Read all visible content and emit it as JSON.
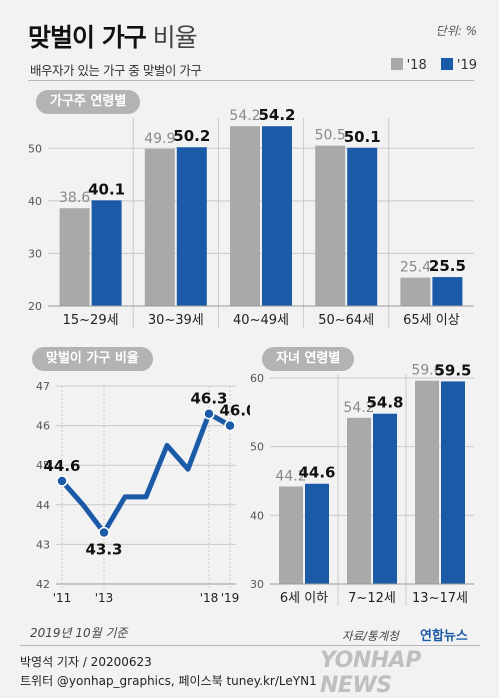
{
  "header": {
    "title_bold": "맞벌이 가구",
    "title_light": "비율",
    "subtitle": "배우자가 있는 가구 중 맞벌이 가구",
    "unit": "단위: %"
  },
  "legend": [
    {
      "label": "'18",
      "color": "#a9a9a9"
    },
    {
      "label": "'19",
      "color": "#1b5aa6"
    }
  ],
  "colors": {
    "y2018": "#a9a9a9",
    "y2019": "#1b5aa6",
    "badge": "#b3b3b3"
  },
  "chart_data": [
    {
      "type": "bar",
      "title": "가구주 연령별",
      "categories": [
        "15~29세",
        "30~39세",
        "40~49세",
        "50~64세",
        "65세 이상"
      ],
      "series": [
        {
          "name": "'18",
          "values": [
            38.6,
            49.9,
            54.2,
            50.5,
            25.4
          ]
        },
        {
          "name": "'19",
          "values": [
            40.1,
            50.2,
            54.2,
            50.1,
            25.5
          ]
        }
      ],
      "ylim": [
        20,
        55
      ],
      "yticks": [
        20,
        30,
        40,
        50
      ],
      "grid": true
    },
    {
      "type": "line",
      "title": "맞벌이 가구 비율",
      "x": [
        2011,
        2012,
        2013,
        2014,
        2015,
        2016,
        2017,
        2018,
        2019
      ],
      "values": [
        44.6,
        44.0,
        43.3,
        44.2,
        44.2,
        45.5,
        44.9,
        46.3,
        46.0
      ],
      "labeled": {
        "2011": "44.6",
        "2013": "43.3",
        "2018": "46.3",
        "2019": "46.0"
      },
      "xtick_labels": [
        {
          "x": 2011,
          "label": "'11"
        },
        {
          "x": 2013,
          "label": "'13"
        },
        {
          "x": 2018,
          "label": "'18"
        },
        {
          "x": 2019,
          "label": "'19"
        }
      ],
      "ylim": [
        42,
        47
      ],
      "yticks": [
        42,
        43,
        44,
        45,
        46,
        47
      ],
      "grid": true
    },
    {
      "type": "bar",
      "title": "자녀 연령별",
      "categories": [
        "6세 이하",
        "7~12세",
        "13~17세"
      ],
      "series": [
        {
          "name": "'18",
          "values": [
            44.2,
            54.2,
            59.6
          ]
        },
        {
          "name": "'19",
          "values": [
            44.6,
            54.8,
            59.5
          ]
        }
      ],
      "ylim": [
        30,
        60
      ],
      "yticks": [
        30,
        40,
        50,
        60
      ],
      "grid": true
    }
  ],
  "footer": {
    "date_note": "2019년 10월 기준",
    "source": "자료/통계청",
    "brand": "연합뉴스",
    "author": "박영석 기자 / 20200623",
    "social": "트위터 @yonhap_graphics, 페이스북 tuney.kr/LeYN1",
    "watermark": "YONHAP NEWS"
  }
}
